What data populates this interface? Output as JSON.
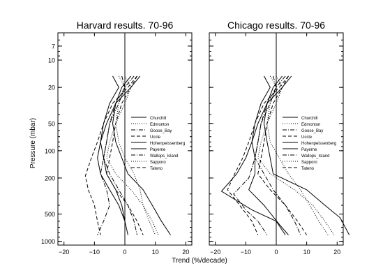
{
  "figure": {
    "xlabel": "Trend (%/decade)",
    "ylabel": "Pressure (mbar)"
  },
  "chart_data": [
    {
      "type": "line",
      "title": "Harvard results. 70-96",
      "xlim": [
        -22,
        22
      ],
      "ylim": [
        1100,
        5
      ],
      "yscale": "log",
      "x_ticks": [
        -20,
        -10,
        0,
        10,
        20
      ],
      "y_ticks": [
        7,
        10,
        20,
        50,
        100,
        200,
        500,
        1000
      ],
      "legend_placement": "right",
      "series": [
        {
          "name": "Churchill",
          "style": "solid",
          "points": [
            [
              2,
              15
            ],
            [
              -1,
              20
            ],
            [
              -3,
              30
            ],
            [
              -4,
              50
            ],
            [
              -3,
              80
            ],
            [
              -1,
              120
            ],
            [
              1,
              180
            ],
            [
              6,
              270
            ],
            [
              9,
              400
            ],
            [
              12,
              600
            ],
            [
              15,
              850
            ]
          ]
        },
        {
          "name": "Edmonton",
          "style": "dotted",
          "points": [
            [
              -2,
              15
            ],
            [
              0,
              20
            ],
            [
              -2,
              30
            ],
            [
              -3,
              50
            ],
            [
              -2,
              80
            ],
            [
              0,
              120
            ],
            [
              3,
              180
            ],
            [
              5,
              270
            ],
            [
              6,
              400
            ],
            [
              8,
              600
            ],
            [
              10,
              850
            ]
          ]
        },
        {
          "name": "Goose_Bay",
          "style": "dashdot",
          "points": [
            [
              3,
              15
            ],
            [
              0,
              20
            ],
            [
              -3,
              30
            ],
            [
              -5,
              50
            ],
            [
              -6,
              80
            ],
            [
              -7,
              120
            ],
            [
              -8,
              180
            ],
            [
              -6,
              270
            ],
            [
              -5,
              400
            ],
            [
              -7,
              600
            ],
            [
              -9,
              850
            ]
          ]
        },
        {
          "name": "Uccle",
          "style": "dashed",
          "points": [
            [
              4,
              15
            ],
            [
              1,
              20
            ],
            [
              -4,
              30
            ],
            [
              -7,
              50
            ],
            [
              -9,
              80
            ],
            [
              -11,
              120
            ],
            [
              -13,
              190
            ],
            [
              -12,
              270
            ],
            [
              -10,
              400
            ],
            [
              -9,
              600
            ],
            [
              -8,
              850
            ]
          ]
        },
        {
          "name": "Hohenpeissenberg",
          "style": "solid",
          "points": [
            [
              5,
              15
            ],
            [
              2,
              20
            ],
            [
              -3,
              30
            ],
            [
              -6,
              50
            ],
            [
              -8,
              80
            ],
            [
              -9,
              120
            ],
            [
              -8,
              180
            ],
            [
              -5,
              270
            ],
            [
              -2,
              400
            ],
            [
              0,
              600
            ],
            [
              1,
              850
            ]
          ]
        },
        {
          "name": "Payerne",
          "style": "solid",
          "points": [
            [
              -4,
              15
            ],
            [
              -2,
              20
            ],
            [
              -5,
              30
            ],
            [
              -7,
              50
            ],
            [
              -8,
              80
            ],
            [
              -7,
              120
            ],
            [
              -6,
              180
            ],
            [
              -3,
              270
            ],
            [
              -1,
              400
            ],
            [
              0,
              600
            ],
            [
              0,
              850
            ]
          ]
        },
        {
          "name": "Wallops_Island",
          "style": "dashdot",
          "points": [
            [
              -1,
              15
            ],
            [
              0,
              20
            ],
            [
              -2,
              30
            ],
            [
              -5,
              50
            ],
            [
              -6,
              80
            ],
            [
              -7,
              120
            ],
            [
              -5,
              180
            ],
            [
              -2,
              270
            ],
            [
              1,
              400
            ],
            [
              3,
              600
            ],
            [
              4,
              850
            ]
          ]
        },
        {
          "name": "Sapporo",
          "style": "dotted",
          "points": [
            [
              0,
              15
            ],
            [
              2,
              20
            ],
            [
              0,
              30
            ],
            [
              -3,
              50
            ],
            [
              -5,
              80
            ],
            [
              -6,
              120
            ],
            [
              -3,
              180
            ],
            [
              2,
              270
            ],
            [
              6,
              400
            ],
            [
              9,
              600
            ],
            [
              11,
              850
            ]
          ]
        },
        {
          "name": "Tateno",
          "style": "dashed",
          "points": [
            [
              4,
              15
            ],
            [
              2,
              20
            ],
            [
              -1,
              30
            ],
            [
              -3,
              50
            ],
            [
              -4,
              80
            ],
            [
              -5,
              120
            ],
            [
              -6,
              180
            ],
            [
              -3,
              270
            ],
            [
              1,
              400
            ],
            [
              4,
              600
            ],
            [
              6,
              850
            ]
          ]
        }
      ]
    },
    {
      "type": "line",
      "title": "Chicago results. 70-96",
      "xlim": [
        -22,
        22
      ],
      "ylim": [
        1100,
        5
      ],
      "yscale": "log",
      "x_ticks": [
        -20,
        -10,
        0,
        10,
        20
      ],
      "y_ticks": [
        7,
        10,
        20,
        50,
        100,
        200,
        500,
        1000
      ],
      "legend_placement": "right",
      "series": [
        {
          "name": "Churchill",
          "style": "solid",
          "points": [
            [
              2,
              15
            ],
            [
              -1,
              20
            ],
            [
              -3,
              30
            ],
            [
              -4,
              50
            ],
            [
              -3,
              80
            ],
            [
              -2,
              120
            ],
            [
              -1,
              180
            ],
            [
              10,
              270
            ],
            [
              16,
              400
            ],
            [
              21,
              550
            ],
            [
              24,
              850
            ]
          ]
        },
        {
          "name": "Edmonton",
          "style": "dotted",
          "points": [
            [
              -2,
              15
            ],
            [
              0,
              20
            ],
            [
              -2,
              30
            ],
            [
              -3,
              50
            ],
            [
              -2,
              80
            ],
            [
              1,
              120
            ],
            [
              4,
              180
            ],
            [
              8,
              270
            ],
            [
              11,
              400
            ],
            [
              14,
              600
            ],
            [
              17,
              850
            ]
          ]
        },
        {
          "name": "Goose_Bay",
          "style": "dashdot",
          "points": [
            [
              3,
              15
            ],
            [
              0,
              20
            ],
            [
              -3,
              30
            ],
            [
              -5,
              50
            ],
            [
              -6,
              80
            ],
            [
              -7,
              120
            ],
            [
              -9,
              200
            ],
            [
              -14,
              300
            ],
            [
              -10,
              450
            ],
            [
              -6,
              600
            ],
            [
              -3,
              850
            ]
          ]
        },
        {
          "name": "Uccle",
          "style": "dashed",
          "points": [
            [
              4,
              15
            ],
            [
              1,
              20
            ],
            [
              -4,
              30
            ],
            [
              -7,
              50
            ],
            [
              -9,
              80
            ],
            [
              -11,
              120
            ],
            [
              -14,
              190
            ],
            [
              -16,
              270
            ],
            [
              -12,
              400
            ],
            [
              -8,
              600
            ],
            [
              -6,
              850
            ]
          ]
        },
        {
          "name": "Hohenpeissenberg",
          "style": "solid",
          "points": [
            [
              5,
              15
            ],
            [
              2,
              20
            ],
            [
              -3,
              30
            ],
            [
              -6,
              50
            ],
            [
              -8,
              80
            ],
            [
              -10,
              120
            ],
            [
              -13,
              180
            ],
            [
              -18,
              280
            ],
            [
              -8,
              450
            ],
            [
              0,
              600
            ],
            [
              3,
              850
            ]
          ]
        },
        {
          "name": "Payerne",
          "style": "solid",
          "points": [
            [
              -4,
              15
            ],
            [
              -2,
              20
            ],
            [
              -5,
              30
            ],
            [
              -7,
              50
            ],
            [
              -8,
              80
            ],
            [
              -7,
              120
            ],
            [
              -7,
              180
            ],
            [
              -9,
              270
            ],
            [
              -4,
              400
            ],
            [
              1,
              650
            ],
            [
              4,
              850
            ]
          ]
        },
        {
          "name": "Wallops_Island",
          "style": "dashdot",
          "points": [
            [
              -1,
              15
            ],
            [
              0,
              20
            ],
            [
              -2,
              30
            ],
            [
              -5,
              50
            ],
            [
              -6,
              80
            ],
            [
              -7,
              120
            ],
            [
              -4,
              180
            ],
            [
              -1,
              270
            ],
            [
              3,
              400
            ],
            [
              6,
              600
            ],
            [
              8,
              850
            ]
          ]
        },
        {
          "name": "Sapporo",
          "style": "dotted",
          "points": [
            [
              0,
              15
            ],
            [
              2,
              20
            ],
            [
              0,
              30
            ],
            [
              -3,
              50
            ],
            [
              -5,
              80
            ],
            [
              -6,
              120
            ],
            [
              -2,
              180
            ],
            [
              6,
              270
            ],
            [
              12,
              400
            ],
            [
              16,
              600
            ],
            [
              19,
              850
            ]
          ]
        },
        {
          "name": "Tateno",
          "style": "dashed",
          "points": [
            [
              4,
              15
            ],
            [
              2,
              20
            ],
            [
              -1,
              30
            ],
            [
              -3,
              50
            ],
            [
              -4,
              80
            ],
            [
              -5,
              120
            ],
            [
              -6,
              180
            ],
            [
              -2,
              270
            ],
            [
              3,
              400
            ],
            [
              7,
              600
            ],
            [
              10,
              850
            ]
          ]
        }
      ]
    }
  ]
}
